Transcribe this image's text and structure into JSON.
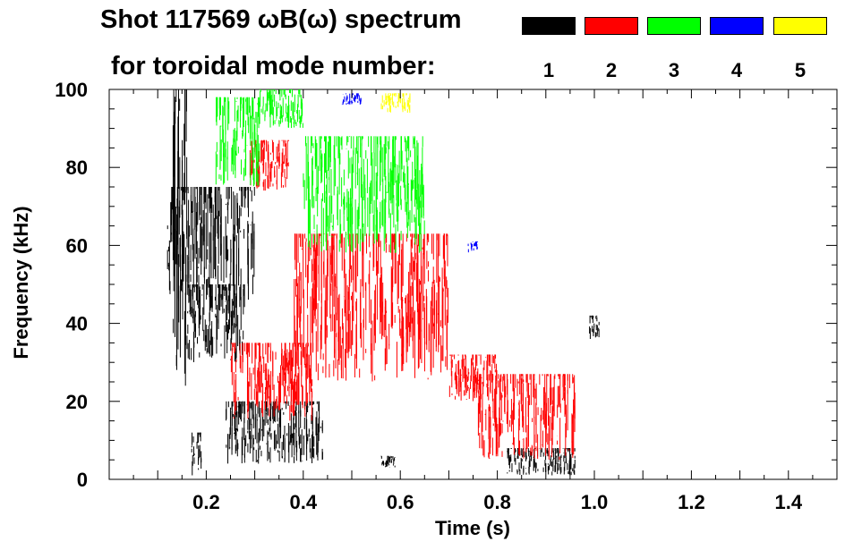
{
  "chart_data": {
    "type": "scatter",
    "title_line1": "Shot 117569 ωB(ω) spectrum",
    "title_line2": "for toroidal mode number:",
    "xlabel": "Time (s)",
    "ylabel": "Frequency (kHz)",
    "xlim": [
      0.0,
      1.5
    ],
    "ylim": [
      0,
      100
    ],
    "x_ticks": [
      "0.2",
      "0.4",
      "0.6",
      "0.8",
      "1.0",
      "1.2",
      "1.4"
    ],
    "x_tick_values": [
      0.2,
      0.4,
      0.6,
      0.8,
      1.0,
      1.2,
      1.4
    ],
    "y_ticks": [
      "0",
      "20",
      "40",
      "60",
      "80",
      "100"
    ],
    "y_tick_values": [
      0,
      20,
      40,
      60,
      80,
      100
    ],
    "legend": [
      {
        "mode": "1",
        "color": "#000000"
      },
      {
        "mode": "2",
        "color": "#ff0000"
      },
      {
        "mode": "3",
        "color": "#00ff00"
      },
      {
        "mode": "4",
        "color": "#0000ff"
      },
      {
        "mode": "5",
        "color": "#ffff00"
      }
    ],
    "series": [
      {
        "name": "1",
        "color": "#000000",
        "regions": [
          {
            "t0": 0.13,
            "t1": 0.16,
            "f0": 22,
            "f1": 100
          },
          {
            "t0": 0.12,
            "t1": 0.3,
            "f0": 45,
            "f1": 75
          },
          {
            "t0": 0.16,
            "t1": 0.28,
            "f0": 30,
            "f1": 50
          },
          {
            "t0": 0.17,
            "t1": 0.19,
            "f0": 1,
            "f1": 12
          },
          {
            "t0": 0.24,
            "t1": 0.44,
            "f0": 4,
            "f1": 20
          },
          {
            "t0": 0.56,
            "t1": 0.59,
            "f0": 3,
            "f1": 6
          },
          {
            "t0": 0.82,
            "t1": 0.96,
            "f0": 1,
            "f1": 8
          },
          {
            "t0": 0.99,
            "t1": 1.01,
            "f0": 36,
            "f1": 42
          }
        ]
      },
      {
        "name": "2",
        "color": "#ff0000",
        "regions": [
          {
            "t0": 0.29,
            "t1": 0.37,
            "f0": 74,
            "f1": 87
          },
          {
            "t0": 0.38,
            "t1": 0.7,
            "f0": 25,
            "f1": 63
          },
          {
            "t0": 0.7,
            "t1": 0.8,
            "f0": 20,
            "f1": 32
          },
          {
            "t0": 0.25,
            "t1": 0.42,
            "f0": 15,
            "f1": 35
          },
          {
            "t0": 0.76,
            "t1": 0.96,
            "f0": 5,
            "f1": 27
          }
        ]
      },
      {
        "name": "3",
        "color": "#00ff00",
        "regions": [
          {
            "t0": 0.31,
            "t1": 0.4,
            "f0": 90,
            "f1": 100
          },
          {
            "t0": 0.22,
            "t1": 0.31,
            "f0": 75,
            "f1": 98
          },
          {
            "t0": 0.4,
            "t1": 0.65,
            "f0": 58,
            "f1": 88
          }
        ]
      },
      {
        "name": "4",
        "color": "#0000ff",
        "regions": [
          {
            "t0": 0.48,
            "t1": 0.52,
            "f0": 96,
            "f1": 99
          },
          {
            "t0": 0.74,
            "t1": 0.76,
            "f0": 58,
            "f1": 61
          }
        ]
      },
      {
        "name": "5",
        "color": "#ffff00",
        "regions": [
          {
            "t0": 0.56,
            "t1": 0.62,
            "f0": 94,
            "f1": 99
          }
        ]
      }
    ]
  }
}
